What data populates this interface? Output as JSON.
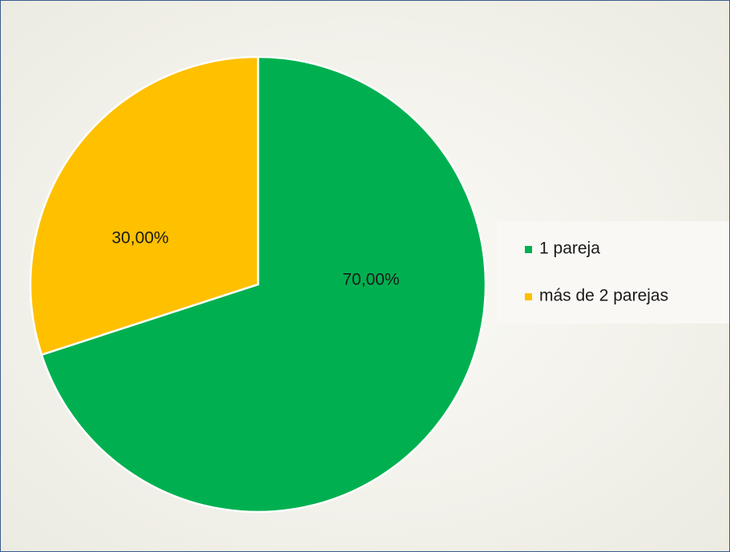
{
  "chart_data": {
    "type": "pie",
    "categories": [
      "1 pareja",
      "más de 2 parejas"
    ],
    "values": [
      70,
      30
    ],
    "value_labels": [
      "70,00%",
      "30,00%"
    ],
    "colors": [
      "#00b050",
      "#ffc000"
    ],
    "legend": "right"
  }
}
